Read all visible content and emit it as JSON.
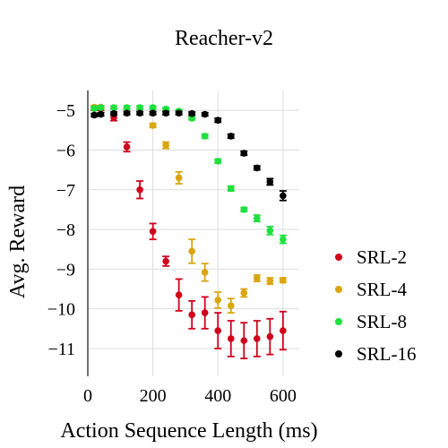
{
  "chart_data": {
    "type": "scatter",
    "title": "Reacher-v2",
    "xlabel": "Action Sequence Length (ms)",
    "ylabel": "Avg. Reward",
    "xlim": [
      0,
      650
    ],
    "ylim": [
      -11.7,
      -4.5
    ],
    "xticks": [
      0,
      200,
      400,
      600
    ],
    "xtick_labels": [
      "0",
      "200",
      "400",
      "600"
    ],
    "yticks": [
      -5,
      -6,
      -7,
      -8,
      -9,
      -10,
      -11
    ],
    "ytick_labels": [
      "−5",
      "−6",
      "−7",
      "−8",
      "−9",
      "−10",
      "−11"
    ],
    "grid": true,
    "legend_position": "right",
    "series": [
      {
        "name": "SRL-2",
        "color": "#d0021b",
        "points": [
          {
            "x": 20,
            "y": -4.95,
            "err": 0.05
          },
          {
            "x": 40,
            "y": -4.95,
            "err": 0.05
          },
          {
            "x": 80,
            "y": -5.18,
            "err": 0.08
          },
          {
            "x": 120,
            "y": -5.92,
            "err": 0.12
          },
          {
            "x": 160,
            "y": -7.0,
            "err": 0.22
          },
          {
            "x": 200,
            "y": -8.05,
            "err": 0.2
          },
          {
            "x": 240,
            "y": -8.8,
            "err": 0.12
          },
          {
            "x": 280,
            "y": -9.65,
            "err": 0.4
          },
          {
            "x": 320,
            "y": -10.15,
            "err": 0.35
          },
          {
            "x": 360,
            "y": -10.1,
            "err": 0.4
          },
          {
            "x": 400,
            "y": -10.55,
            "err": 0.45
          },
          {
            "x": 440,
            "y": -10.75,
            "err": 0.45
          },
          {
            "x": 480,
            "y": -10.8,
            "err": 0.45
          },
          {
            "x": 520,
            "y": -10.75,
            "err": 0.45
          },
          {
            "x": 560,
            "y": -10.7,
            "err": 0.45
          },
          {
            "x": 600,
            "y": -10.55,
            "err": 0.48
          }
        ]
      },
      {
        "name": "SRL-4",
        "color": "#daa50e",
        "points": [
          {
            "x": 20,
            "y": -4.92,
            "err": 0.04
          },
          {
            "x": 40,
            "y": -4.92,
            "err": 0.04
          },
          {
            "x": 200,
            "y": -5.38,
            "err": 0.05
          },
          {
            "x": 240,
            "y": -5.88,
            "err": 0.08
          },
          {
            "x": 280,
            "y": -6.7,
            "err": 0.15
          },
          {
            "x": 320,
            "y": -8.55,
            "err": 0.3
          },
          {
            "x": 360,
            "y": -9.08,
            "err": 0.22
          },
          {
            "x": 400,
            "y": -9.78,
            "err": 0.2
          },
          {
            "x": 440,
            "y": -9.92,
            "err": 0.18
          },
          {
            "x": 480,
            "y": -9.6,
            "err": 0.1
          },
          {
            "x": 520,
            "y": -9.23,
            "err": 0.08
          },
          {
            "x": 560,
            "y": -9.3,
            "err": 0.08
          },
          {
            "x": 600,
            "y": -9.28,
            "err": 0.06
          }
        ]
      },
      {
        "name": "SRL-8",
        "color": "#1ee03e",
        "points": [
          {
            "x": 20,
            "y": -4.95,
            "err": 0.04
          },
          {
            "x": 40,
            "y": -4.93,
            "err": 0.04
          },
          {
            "x": 80,
            "y": -4.93,
            "err": 0.04
          },
          {
            "x": 120,
            "y": -4.93,
            "err": 0.04
          },
          {
            "x": 160,
            "y": -4.93,
            "err": 0.04
          },
          {
            "x": 200,
            "y": -4.93,
            "err": 0.04
          },
          {
            "x": 240,
            "y": -4.97,
            "err": 0.04
          },
          {
            "x": 280,
            "y": -5.02,
            "err": 0.04
          },
          {
            "x": 320,
            "y": -5.2,
            "err": 0.04
          },
          {
            "x": 360,
            "y": -5.65,
            "err": 0.05
          },
          {
            "x": 400,
            "y": -6.28,
            "err": 0.05
          },
          {
            "x": 440,
            "y": -6.97,
            "err": 0.06
          },
          {
            "x": 480,
            "y": -7.5,
            "err": 0.05
          },
          {
            "x": 520,
            "y": -7.72,
            "err": 0.08
          },
          {
            "x": 560,
            "y": -8.03,
            "err": 0.1
          },
          {
            "x": 600,
            "y": -8.25,
            "err": 0.1
          }
        ]
      },
      {
        "name": "SRL-16",
        "color": "#000000",
        "points": [
          {
            "x": 20,
            "y": -5.12,
            "err": 0.04
          },
          {
            "x": 40,
            "y": -5.1,
            "err": 0.04
          },
          {
            "x": 80,
            "y": -5.08,
            "err": 0.04
          },
          {
            "x": 120,
            "y": -5.07,
            "err": 0.04
          },
          {
            "x": 160,
            "y": -5.07,
            "err": 0.04
          },
          {
            "x": 200,
            "y": -5.07,
            "err": 0.04
          },
          {
            "x": 240,
            "y": -5.07,
            "err": 0.04
          },
          {
            "x": 280,
            "y": -5.07,
            "err": 0.04
          },
          {
            "x": 320,
            "y": -5.08,
            "err": 0.04
          },
          {
            "x": 360,
            "y": -5.1,
            "err": 0.04
          },
          {
            "x": 400,
            "y": -5.25,
            "err": 0.05
          },
          {
            "x": 440,
            "y": -5.65,
            "err": 0.05
          },
          {
            "x": 480,
            "y": -6.08,
            "err": 0.05
          },
          {
            "x": 520,
            "y": -6.45,
            "err": 0.05
          },
          {
            "x": 560,
            "y": -6.8,
            "err": 0.08
          },
          {
            "x": 600,
            "y": -7.15,
            "err": 0.12
          }
        ]
      }
    ]
  }
}
